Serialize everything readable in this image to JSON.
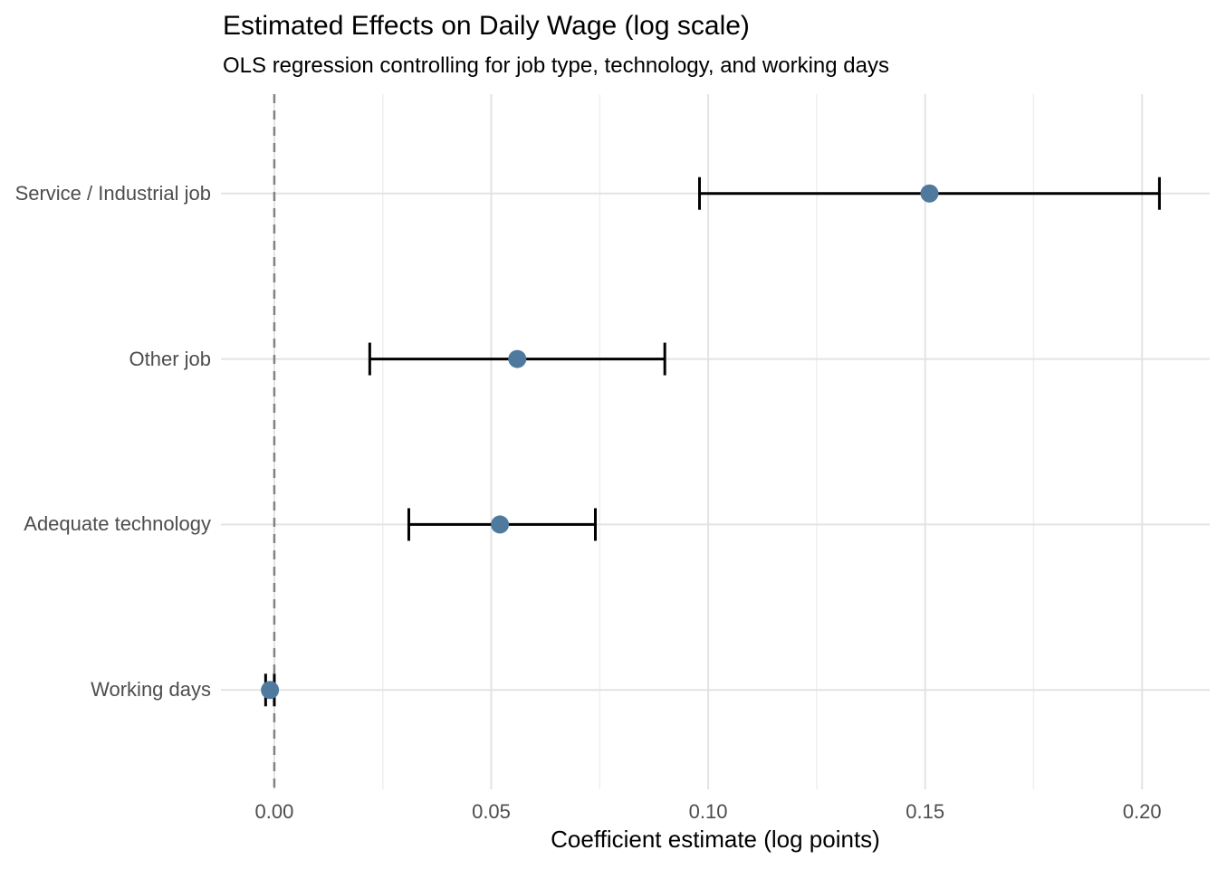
{
  "chart_data": {
    "type": "scatter",
    "subtype": "dot_whisker_coefficient_plot",
    "title": "Estimated Effects on Daily Wage (log scale)",
    "subtitle": "OLS regression controlling for job type, technology, and working days",
    "xlabel": "Coefficient estimate (log points)",
    "ylabel": "",
    "categories": [
      "Service / Industrial job",
      "Other job",
      "Adequate technology",
      "Working days"
    ],
    "points": [
      {
        "label": "Service / Industrial job",
        "estimate": 0.151,
        "ci_low": 0.098,
        "ci_high": 0.204
      },
      {
        "label": "Other job",
        "estimate": 0.056,
        "ci_low": 0.022,
        "ci_high": 0.09
      },
      {
        "label": "Adequate technology",
        "estimate": 0.052,
        "ci_low": 0.031,
        "ci_high": 0.074
      },
      {
        "label": "Working days",
        "estimate": -0.001,
        "ci_low": -0.002,
        "ci_high": 0.0
      }
    ],
    "x_ticks": [
      0.0,
      0.05,
      0.1,
      0.15,
      0.2
    ],
    "x_tick_labels": [
      "0.00",
      "0.05",
      "0.10",
      "0.15",
      "0.20"
    ],
    "x_minor_ticks": [
      0.025,
      0.075,
      0.125,
      0.175
    ],
    "xlim": [
      -0.0123,
      0.2156
    ],
    "reference_line_x": 0,
    "grid": true,
    "legend": "none",
    "colors": {
      "point": "#4f7a9e",
      "errorbar": "#000000",
      "ref_line": "#828282",
      "grid_major": "#e3e3e3",
      "grid_minor": "#efefef",
      "tick_text": "#4d4d4d",
      "title_text": "#000000",
      "background": "#ffffff"
    }
  }
}
